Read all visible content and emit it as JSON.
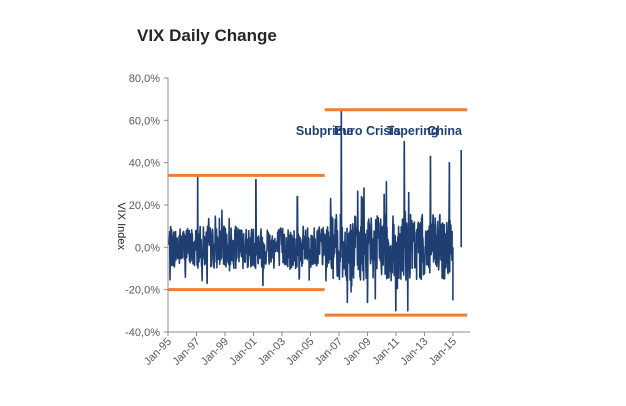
{
  "chart_data": {
    "type": "line",
    "title": "VIX Daily Change",
    "xlabel": "",
    "ylabel": "VIX Index",
    "x_range": [
      "Jan-95",
      "Jan-16"
    ],
    "ylim": [
      -40,
      80
    ],
    "y_ticks": [
      "80,0%",
      "60,0%",
      "40,0%",
      "20,0%",
      "0,0%",
      "-20,0%",
      "-40,0%"
    ],
    "x_ticks": [
      "Jan-95",
      "Jan-97",
      "Jan-99",
      "Jan-01",
      "Jan-03",
      "Jan-05",
      "Jan-07",
      "Jan-09",
      "Jan-11",
      "Jan-13",
      "Jan-15"
    ],
    "series": [
      {
        "color": "#1f3f73",
        "baseline_band": [
          -10,
          10
        ],
        "spikes": [
          {
            "x": "Feb-97",
            "y": 34
          },
          {
            "x": "Oct-97",
            "y": -17
          },
          {
            "x": "Mar-01",
            "y": 32
          },
          {
            "x": "Sep-01",
            "y": -18
          },
          {
            "x": "Feb-04",
            "y": 24
          },
          {
            "x": "Jun-06",
            "y": 23
          },
          {
            "x": "Mar-07",
            "y": 65
          },
          {
            "x": "Aug-07",
            "y": -26
          },
          {
            "x": "Oct-08",
            "y": 28
          },
          {
            "x": "Jan-09",
            "y": -26
          },
          {
            "x": "Mar-10",
            "y": 25
          },
          {
            "x": "May-10",
            "y": 31
          },
          {
            "x": "Jan-11",
            "y": -30
          },
          {
            "x": "Aug-11",
            "y": 50
          },
          {
            "x": "Nov-11",
            "y": -30
          },
          {
            "x": "Jun-13",
            "y": 43
          },
          {
            "x": "Oct-14",
            "y": 40
          },
          {
            "x": "Jan-15",
            "y": -25
          },
          {
            "x": "Aug-15",
            "y": 46
          }
        ]
      }
    ],
    "reference_lines": [
      {
        "x_from": "Jan-95",
        "x_to": "Jan-06",
        "y": 34
      },
      {
        "x_from": "Jan-95",
        "x_to": "Jan-06",
        "y": -20
      },
      {
        "x_from": "Jan-06",
        "x_to": "Jan-16",
        "y": 65
      },
      {
        "x_from": "Jan-06",
        "x_to": "Jan-16",
        "y": -32
      }
    ],
    "reference_color": "#ed7d31",
    "annotations": [
      {
        "text": "Subprime",
        "x": "Jan-06",
        "y": 53
      },
      {
        "text": "Euro Crisis",
        "x": "Jan-09",
        "y": 53
      },
      {
        "text": "Tapering",
        "x": "Mar-12",
        "y": 53
      },
      {
        "text": "China",
        "x": "Jun-14",
        "y": 53
      }
    ]
  }
}
